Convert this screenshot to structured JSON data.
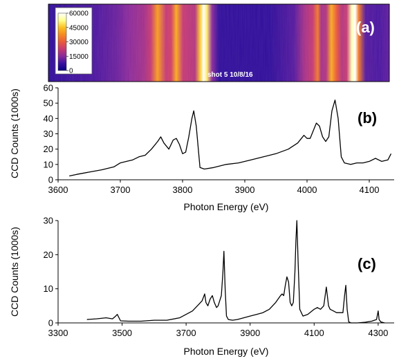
{
  "colors": {
    "trace": "#000000",
    "axis": "#000000",
    "colormap": [
      "#0a0080",
      "#3a10a0",
      "#8a2a9a",
      "#c83a70",
      "#ea5a3a",
      "#f58a20",
      "#fbc020",
      "#ffff90",
      "#ffffff"
    ]
  },
  "chart_data": [
    {
      "type": "heatmap",
      "panel_label": "(a)",
      "annotation": "shot 5 10/8/16",
      "colorbar": {
        "ticks": [
          0,
          15000,
          30000,
          45000,
          60000
        ],
        "tick_labels": [
          "0",
          "15000",
          "30000",
          "45000",
          "60000"
        ],
        "range": [
          0,
          60000
        ]
      },
      "band_profile": [
        [
          0.0,
          6000
        ],
        [
          0.13,
          9000
        ],
        [
          0.2,
          12000
        ],
        [
          0.235,
          15000
        ],
        [
          0.28,
          18000
        ],
        [
          0.3,
          22000
        ],
        [
          0.32,
          40000
        ],
        [
          0.345,
          22000
        ],
        [
          0.36,
          24000
        ],
        [
          0.375,
          42000
        ],
        [
          0.395,
          22000
        ],
        [
          0.43,
          20000
        ],
        [
          0.445,
          46000
        ],
        [
          0.455,
          60000
        ],
        [
          0.465,
          50000
        ],
        [
          0.48,
          15000
        ],
        [
          0.5,
          6000
        ],
        [
          0.65,
          6000
        ],
        [
          0.72,
          10000
        ],
        [
          0.75,
          18000
        ],
        [
          0.775,
          22000
        ],
        [
          0.79,
          35000
        ],
        [
          0.8,
          18000
        ],
        [
          0.815,
          20000
        ],
        [
          0.83,
          42000
        ],
        [
          0.845,
          30000
        ],
        [
          0.86,
          20000
        ],
        [
          0.875,
          22000
        ],
        [
          0.89,
          55000
        ],
        [
          0.9,
          60000
        ],
        [
          0.91,
          35000
        ],
        [
          0.93,
          10000
        ],
        [
          0.97,
          9000
        ],
        [
          1.0,
          11000
        ]
      ]
    },
    {
      "type": "line",
      "panel_label": "(b)",
      "xlabel": "Photon Energy (eV)",
      "ylabel": "CCD Counts (1000s)",
      "xlim": [
        3600,
        4140
      ],
      "ylim": [
        0,
        60
      ],
      "xticks": [
        3600,
        3700,
        3800,
        3900,
        4000,
        4100
      ],
      "yticks": [
        0,
        10,
        20,
        30,
        40,
        50,
        60
      ],
      "x": [
        3618,
        3630,
        3650,
        3670,
        3690,
        3700,
        3710,
        3720,
        3730,
        3740,
        3750,
        3760,
        3765,
        3770,
        3778,
        3785,
        3790,
        3795,
        3800,
        3805,
        3810,
        3815,
        3818,
        3822,
        3828,
        3835,
        3850,
        3870,
        3890,
        3910,
        3930,
        3950,
        3970,
        3985,
        3995,
        4000,
        4005,
        4010,
        4015,
        4020,
        4025,
        4030,
        4035,
        4040,
        4045,
        4050,
        4055,
        4060,
        4070,
        4080,
        4090,
        4100,
        4110,
        4120,
        4130,
        4135
      ],
      "y": [
        2.5,
        3.5,
        5,
        6.5,
        8.5,
        11,
        12,
        13,
        15,
        16,
        20,
        25,
        28,
        24,
        20,
        26,
        27,
        23,
        17,
        18,
        28,
        40,
        45,
        35,
        8,
        7,
        8,
        10,
        11,
        13,
        15,
        17,
        20,
        24,
        29,
        27,
        27,
        32,
        37,
        35,
        28,
        25,
        28,
        45,
        52,
        40,
        15,
        11,
        10,
        11,
        11,
        12,
        14,
        12,
        13,
        17
      ]
    },
    {
      "type": "line",
      "panel_label": "(c)",
      "xlabel": "Photon Energy (eV)",
      "ylabel": "CCD Counts (1000s)",
      "xlim": [
        3300,
        4350
      ],
      "ylim": [
        0,
        30
      ],
      "xticks": [
        3300,
        3500,
        3700,
        3900,
        4100,
        4300
      ],
      "yticks": [
        0,
        10,
        20,
        30
      ],
      "x": [
        3390,
        3420,
        3450,
        3470,
        3480,
        3485,
        3495,
        3520,
        3560,
        3600,
        3640,
        3680,
        3700,
        3720,
        3740,
        3750,
        3758,
        3762,
        3768,
        3775,
        3782,
        3788,
        3795,
        3800,
        3810,
        3815,
        3818,
        3822,
        3826,
        3832,
        3845,
        3860,
        3880,
        3900,
        3920,
        3940,
        3960,
        3980,
        3995,
        4000,
        4005,
        4010,
        4015,
        4020,
        4025,
        4030,
        4035,
        4040,
        4043,
        4046,
        4050,
        4055,
        4065,
        4080,
        4100,
        4110,
        4120,
        4130,
        4138,
        4145,
        4150,
        4160,
        4170,
        4180,
        4190,
        4195,
        4199,
        4203,
        4208,
        4215,
        4235,
        4260,
        4280,
        4295,
        4300,
        4303,
        4308,
        4320
      ],
      "y": [
        1,
        1.2,
        1.5,
        1.2,
        2,
        2.5,
        0.6,
        0.5,
        0.5,
        0.8,
        0.8,
        1.5,
        2.5,
        3.5,
        5.5,
        6.5,
        8.5,
        6,
        5,
        7,
        8,
        6,
        4.5,
        5,
        8,
        15,
        21,
        10,
        2,
        1,
        0.8,
        1,
        1.5,
        2,
        2.5,
        3,
        4,
        6,
        8,
        8.5,
        8,
        11,
        13.5,
        12,
        6,
        5,
        6,
        15,
        24,
        30,
        18,
        4,
        2,
        2.5,
        4,
        4.5,
        4,
        5,
        10.5,
        5,
        4,
        3.5,
        3,
        3,
        3,
        8,
        11,
        4,
        0.3,
        0,
        0,
        0.2,
        0.5,
        1,
        3.5,
        1,
        0.3,
        0
      ]
    }
  ]
}
